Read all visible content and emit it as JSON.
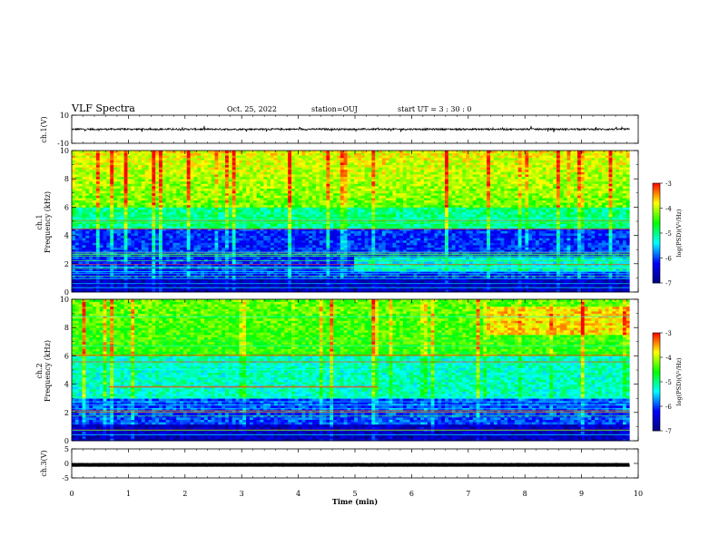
{
  "header": {
    "title": "VLF Spectra",
    "date": "Oct. 25, 2022",
    "station": "station=OUJ",
    "start_time": "start UT =  3 : 30 : 0"
  },
  "chart_data": [
    {
      "id": "ch1-waveform",
      "type": "line",
      "ylabel": "ch.1(V)",
      "ylim": [
        -10,
        10
      ],
      "yticks": [
        "10",
        "-10"
      ],
      "xlim": [
        0,
        10
      ],
      "baseline": 0,
      "amplitude_typical": 1.5,
      "data_end_min": 9.85,
      "color": "#000000"
    },
    {
      "id": "ch1-spectrogram",
      "type": "heatmap",
      "ylabel": "ch.1\nFrequency (kHz)",
      "ylim": [
        0,
        10
      ],
      "yticks": [
        "0",
        "2",
        "4",
        "6",
        "8",
        "10"
      ],
      "xlim": [
        0,
        10
      ],
      "data_end_min": 9.85,
      "colorbar": {
        "label": "log(PSD)(V²/Hz)",
        "range": [
          -7,
          -3
        ],
        "ticks": [
          "-3",
          "-4",
          "-5",
          "-6",
          "-7"
        ]
      },
      "features": [
        {
          "desc": "high-frequency emission",
          "freq_khz": [
            6,
            10
          ],
          "level": -4.0
        },
        {
          "desc": "spectral band",
          "freq_khz": [
            1.5,
            2.5
          ],
          "time_min": [
            5,
            9.85
          ],
          "level": -5.2
        }
      ]
    },
    {
      "id": "ch2-spectrogram",
      "type": "heatmap",
      "ylabel": "ch.2\nFrequency (kHz)",
      "ylim": [
        0,
        10
      ],
      "yticks": [
        "0",
        "2",
        "4",
        "6",
        "8",
        "10"
      ],
      "xlim": [
        0,
        10
      ],
      "data_end_min": 9.85,
      "colorbar": {
        "label": "log(PSD)(V²/Hz)",
        "range": [
          -7,
          -3
        ],
        "ticks": [
          "-3",
          "-4",
          "-5",
          "-6",
          "-7"
        ]
      },
      "features": [
        {
          "desc": "emission band",
          "freq_khz": [
            7.5,
            9.5
          ],
          "time_min": [
            7.3,
            9.85
          ],
          "level": -3.3
        },
        {
          "desc": "narrow lines",
          "freq_khz": [
            3.8,
            5.2
          ],
          "time_min": [
            0.65,
            5.4
          ],
          "level": -3.6
        }
      ]
    },
    {
      "id": "ch3-waveform",
      "type": "line",
      "ylabel": "ch.3(V)",
      "ylim": [
        -5,
        5
      ],
      "yticks": [
        "5",
        "0",
        "-5"
      ],
      "xlim": [
        0,
        10
      ],
      "baseline": -0.5,
      "data_end_min": 9.85,
      "color": "#000000"
    }
  ],
  "x_axis": {
    "label": "Time (min)",
    "range": [
      0,
      10
    ],
    "ticks": [
      "0",
      "1",
      "2",
      "3",
      "4",
      "5",
      "6",
      "7",
      "8",
      "9",
      "10"
    ]
  },
  "colors": {
    "colormap": [
      "#000080",
      "#0000ff",
      "#00ffff",
      "#00ff00",
      "#ffff00",
      "#ff0000"
    ]
  }
}
